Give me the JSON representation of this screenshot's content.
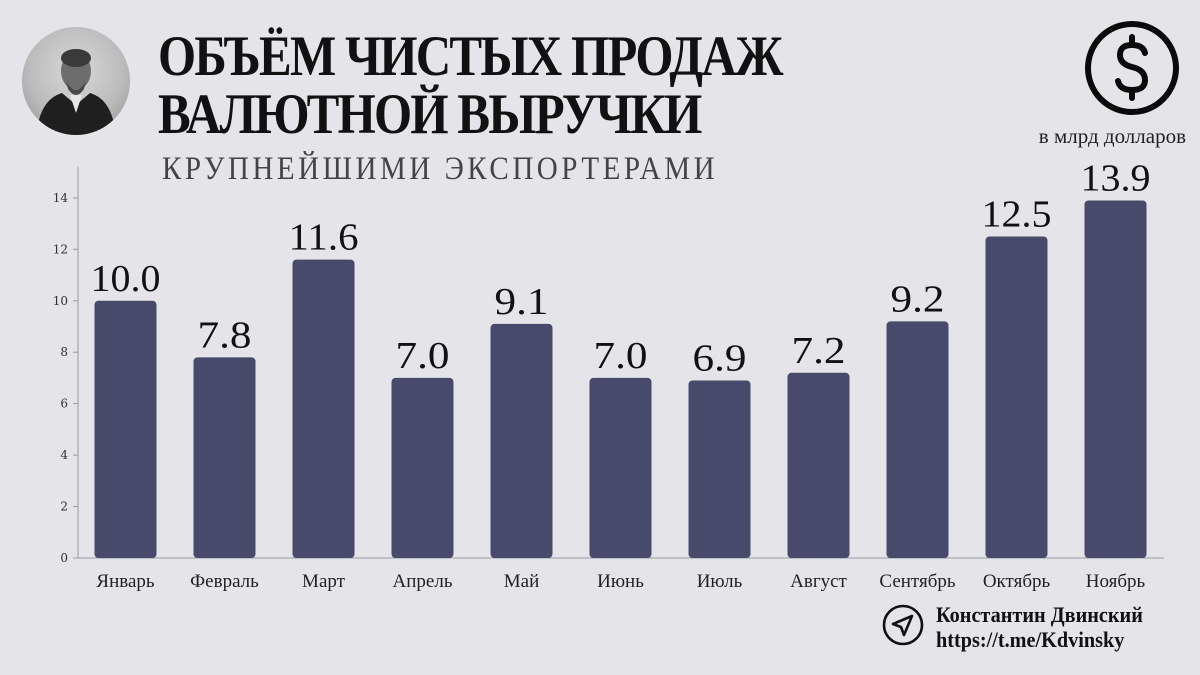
{
  "header": {
    "title_line1": "ОБЪЁМ ЧИСТЫХ ПРОДАЖ",
    "title_line2": "ВАЛЮТНОЙ ВЫРУЧКИ",
    "subtitle": "КРУПНЕЙШИМИ ЭКСПОРТЕРАМИ",
    "unit": "в млрд долларов",
    "currency_icon": "dollar-icon"
  },
  "footer": {
    "author": "Константин Двинский",
    "link": "https://t.me/Kdvinsky",
    "icon": "send-arrow-icon"
  },
  "colors": {
    "background": "#e4e4e9",
    "bar": "#474a6a",
    "axis": "#9a9aa4"
  },
  "chart_data": {
    "type": "bar",
    "categories": [
      "Январь",
      "Февраль",
      "Март",
      "Апрель",
      "Май",
      "Июнь",
      "Июль",
      "Август",
      "Сентябрь",
      "Октябрь",
      "Ноябрь"
    ],
    "values": [
      10.0,
      7.8,
      11.6,
      7.0,
      9.1,
      7.0,
      6.9,
      7.2,
      9.2,
      12.5,
      13.9
    ],
    "data_labels": [
      "10.0",
      "7.8",
      "11.6",
      "7.0",
      "9.1",
      "7.0",
      "6.9",
      "7.2",
      "9.2",
      "12.5",
      "13.9"
    ],
    "y_ticks": [
      0,
      2,
      4,
      6,
      8,
      10,
      12,
      14
    ],
    "ylim": [
      0,
      15.2
    ],
    "grid": false,
    "xlabel": "",
    "ylabel": ""
  }
}
